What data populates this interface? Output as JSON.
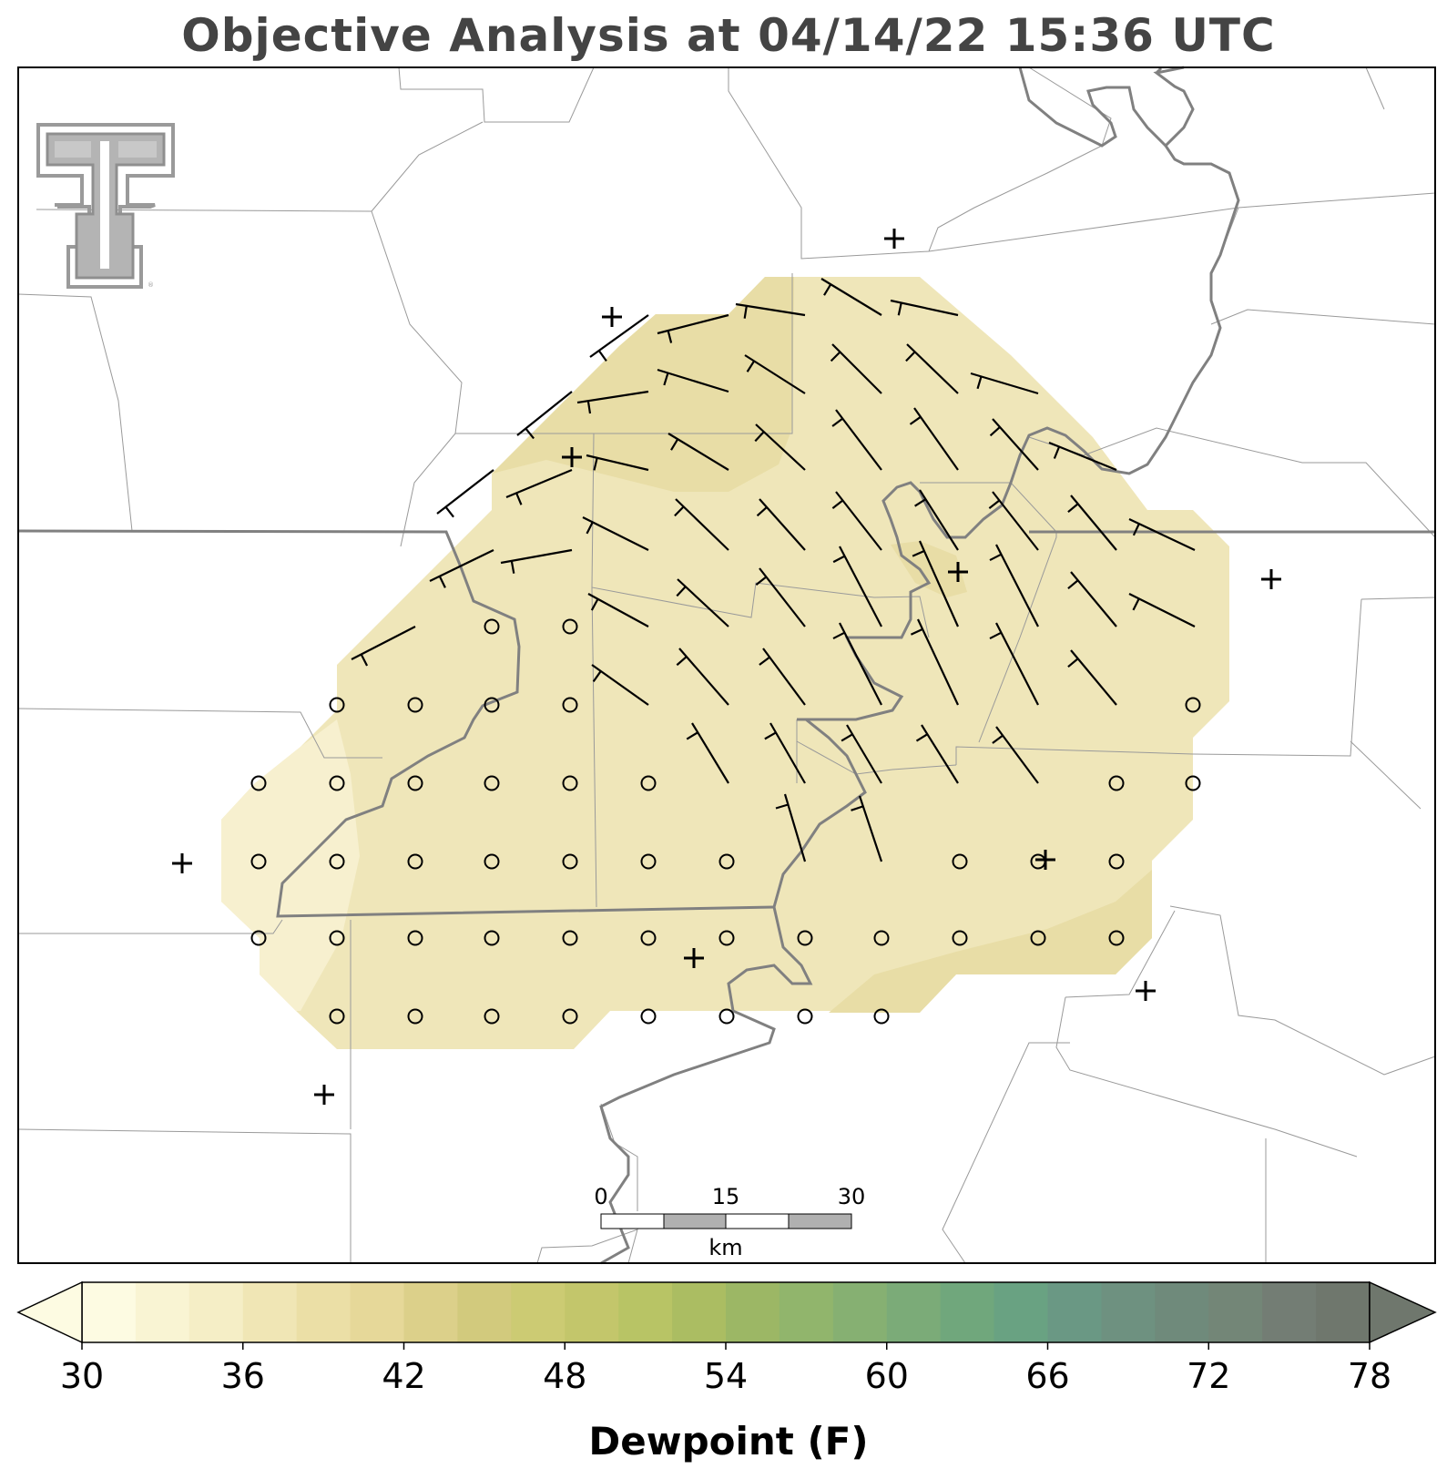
{
  "title": "Objective Analysis at 04/14/22 15:36 UTC",
  "logo": {
    "name": "texas-tech-double-t-logo",
    "color": "#9a9a9a"
  },
  "scale_bar": {
    "labels": [
      "0",
      "15",
      "30"
    ],
    "unit": "km",
    "colors": [
      "#ffffff",
      "#b0b0b0"
    ]
  },
  "colorbar": {
    "label": "Dewpoint (F)",
    "min": 30,
    "max": 80,
    "step": 2,
    "extend": "both",
    "tick_labels": [
      "30",
      "36",
      "42",
      "48",
      "54",
      "60",
      "66",
      "72",
      "78"
    ],
    "colors": [
      "#fdfbe2",
      "#f9f4d3",
      "#f5eec6",
      "#f0e6b5",
      "#ebdfa6",
      "#e6d899",
      "#dcd08a",
      "#d2ca7d",
      "#cccb73",
      "#c3c66b",
      "#b8c465",
      "#abbd62",
      "#9cb765",
      "#91b56c",
      "#86b072",
      "#7bab78",
      "#70a77c",
      "#69a282",
      "#6a9884",
      "#6e9180",
      "#6f8a7b",
      "#738677",
      "#737d74",
      "#6f776d"
    ],
    "under_color": "#fdfbe2",
    "over_color": "#6f776d"
  },
  "map_legend": {
    "filled_region_color": "#efe6b9",
    "darker_region_color": "#e7dca3",
    "missing_station_symbol": "+",
    "calm_symbol": "circle"
  }
}
